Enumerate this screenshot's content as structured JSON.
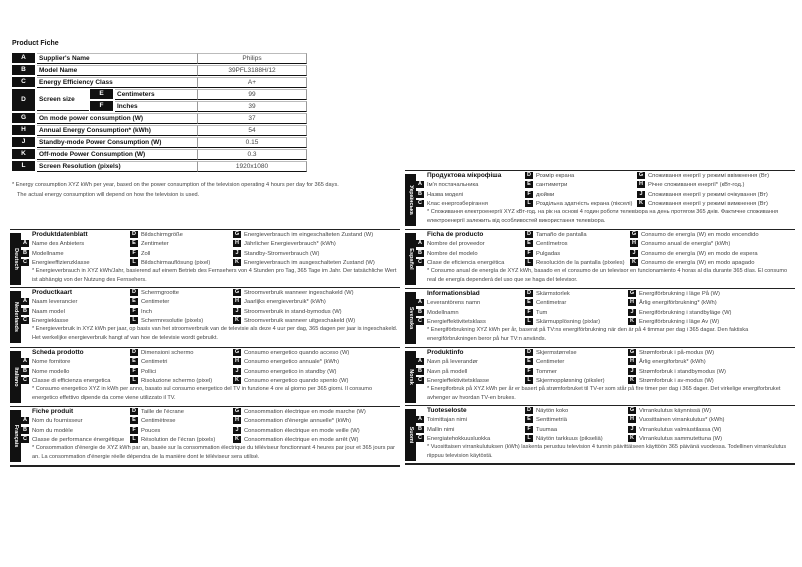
{
  "title": "Product Fiche",
  "table": [
    {
      "letter": "A",
      "label": "Supplier's Name",
      "value": "Philips"
    },
    {
      "letter": "B",
      "label": "Model Name",
      "value": "39PFL3188H/12"
    },
    {
      "letter": "C",
      "label": "Energy Efficiency Class",
      "value": "A+"
    },
    {
      "letter": "D",
      "label": "Screen size",
      "sub": [
        {
          "letter": "E",
          "label": "Centimeters",
          "value": "99"
        },
        {
          "letter": "F",
          "label": "Inches",
          "value": "39"
        }
      ]
    },
    {
      "letter": "G",
      "label": "On mode power consumption (W)",
      "value": "37"
    },
    {
      "letter": "H",
      "label": "Annual Energy Consumption* (kWh)",
      "value": "54"
    },
    {
      "letter": "J",
      "label": "Standby-mode Power Consumption (W)",
      "value": "0.15"
    },
    {
      "letter": "K",
      "label": "Off-mode Power Consumption (W)",
      "value": "0.3"
    },
    {
      "letter": "L",
      "label": "Screen Resolution (pixels)",
      "value": "1920x1080"
    }
  ],
  "note": "* Energy consumption XYZ kWh per year, based on the power consumption of the television operating 4 hours per day for 365 days.",
  "note2": "The actual energy consumption will depend on how the television is used.",
  "languages": [
    {
      "lang": "Deutsch",
      "title": "Produktdatenblatt",
      "A": "Name des Anbieters",
      "B": "Modellname",
      "C": "Energieeffizienzklasse",
      "D": "Bildschirmgröße",
      "E": "Zentimeter",
      "F": "Zoll",
      "L": "Bildschirmauflösung (pixel)",
      "G": "Energieverbrauch im eingeschalteten Zustand (W)",
      "H": "Jährlicher Energieverbrauch* (kWh)",
      "J": "Standby-Stromverbrauch (W)",
      "K": "Energieverbrauch im ausgeschalteten Zustand (W)",
      "note": "* Energieverbrauch in XYZ kWh/Jahr, basierend auf einem Betrieb des Fernsehers von 4 Stunden pro Tag, 365 Tage im Jahr. Der tatsächliche Wert ist abhängig von der Nutzung des Fernsehers."
    },
    {
      "lang": "Nederlands",
      "title": "Productkaart",
      "A": "Naam leverancier",
      "B": "Naam model",
      "C": "Energieklasse",
      "D": "Schermgrootte",
      "E": "Centimeter",
      "F": "Inch",
      "L": "Schermresolutie (pixels)",
      "G": "Stroomverbruik wanneer ingeschakeld (W)",
      "H": "Jaarlijks energieverbruik* (kWh)",
      "J": "Stroomverbruik in stand-bymodus (W)",
      "K": "Stroomverbruik wanneer uitgeschakeld (W)",
      "note": "* Energieverbruik in XYZ kWh per jaar, op basis van het stroomverbruik van de televisie als deze 4 uur per dag, 365 dagen per jaar is ingeschakeld. Het werkelijke energieverbruik hangt af van hoe de televisie wordt gebruikt."
    },
    {
      "lang": "Italiano",
      "title": "Scheda prodotto",
      "A": "Nome fornitore",
      "B": "Nome modello",
      "C": "Classe di efficienza energetica",
      "D": "Dimensioni schermo",
      "E": "Centimetri",
      "F": "Pollici",
      "L": "Risoluzione schermo (pixel)",
      "G": "Consumo energetico quando acceso (W)",
      "H": "Consumo energetico annuale* (kWh)",
      "J": "Consumo energetico in standby (W)",
      "K": "Consumo energetico quando spento (W)",
      "note": "* Consumo energetico XYZ in kWh per anno, basato sul consumo energetico del TV in funzione 4 ore al giorno per 365 giorni. Il consumo energetico effettivo dipende da come viene utilizzato il TV."
    },
    {
      "lang": "Français",
      "title": "Fiche produit",
      "A": "Nom du fournisseur",
      "B": "Nom du modèle",
      "C": "Classe de performance énergétique",
      "D": "Taille de l'écrane",
      "E": "Centimètrese",
      "F": "Pouces",
      "L": "Résolution de l'écran (pixels)",
      "G": "Consommation électrique en mode marche (W)",
      "H": "Consommation d'énergie annuelle* (kWh)",
      "J": "Consommation électrique en mode veille (W)",
      "K": "Consommation électrique en mode arrêt (W)",
      "note": "* Consommation d'énergie de XYZ kWh par an, basée sur la consommation électrique du téléviseur fonctionnant 4 heures par jour et 365 jours par an. La consommation d'énergie réelle dépendra de la manière dont le téléviseur sera utilisé."
    },
    {
      "lang": "Українська",
      "title": "Продуктова мікрофіша",
      "A": "Ім'я постачальника",
      "B": "Назва моделі",
      "C": "Клас енергозберігання",
      "D": "Розмір екрана",
      "E": "сантиметри",
      "F": "дюйми",
      "L": "Роздільна здатність екрана (пікселі)",
      "G": "Споживання енергії у режимі ввімкнення (Вт)",
      "H": "Річне споживання енергії* (кВт-год.)",
      "J": "Споживання енергії у режимі очікування (Вт)",
      "K": "Споживання енергії у режимі вимкнення (Вт)",
      "note": "* Споживання електроенергії XYZ кВт-год. на рік на основі 4 годин роботи телевізора на день протягом 365 днів. Фактичне споживання електроенергії залежить від особливостей використання телевізора."
    },
    {
      "lang": "Español",
      "title": "Ficha de producto",
      "A": "Nombre del proveedor",
      "B": "Nombre del modelo",
      "C": "Clase de eficiencia energética",
      "D": "Tamaño de pantalla",
      "E": "Centímetros",
      "F": "Pulgadas",
      "L": "Resolución de la pantalla (píxeles)",
      "G": "Consumo de energía (W) en modo encendido",
      "H": "Consumo anual de energía* (kWh)",
      "J": "Consumo de energía (W) en modo de espera",
      "K": "Consumo de energía (W) en modo apagado",
      "note": "* Consumo anual de energía de XYZ kWh, basado en el consumo de un televisor en funcionamiento 4 horas al día durante 365 días. El consumo real de energía dependerá del uso que se haga del televisor."
    },
    {
      "lang": "Svenska",
      "title": "Informationsblad",
      "A": "Leverantörens namn",
      "B": "Modellnamn",
      "C": "Energieffektivitetsklass",
      "D": "Skärmstorlek",
      "E": "Centimetrar",
      "F": "Tum",
      "L": "Skärmupplösning (pixlar)",
      "G": "Energiförbrukning i läge På (W)",
      "H": "Årlig energiförbrukning* (kWh)",
      "J": "Energiförbrukning i standbyläge (W)",
      "K": "Energiförbrukning i läge Av (W)",
      "note": "* Energiförbrukning XYZ kWh per år, baserat på TV:ns energiförbrukning när den är på 4 timmar per dag i 365 dagar. Den faktiska energiförbrukningen beror på hur TV:n används."
    },
    {
      "lang": "Norsk",
      "title": "Produktinfo",
      "A": "Navn på leverandør",
      "B": "Navn på modell",
      "C": "Energieffektivitetsklasse",
      "D": "Skjermstørrelse",
      "E": "Centimeter",
      "F": "Tommer",
      "L": "Skjermoppløsning (piksler)",
      "G": "Strømforbruk i på-modus (W)",
      "H": "Årlig energiforbruk* (kWh)",
      "J": "Strømforbruk i standbymodus (W)",
      "K": "Strømforbruk i av-modus (W)",
      "note": "* Energiforbruk på XYZ kWh per år er basert på strømforbruket til TV-er som står på fire timer per dag i 365 dager. Det virkelige energiforbruket avhenger av hvordan TV-en brukes."
    },
    {
      "lang": "Suomi",
      "title": "Tuoteseloste",
      "A": "Toimittajan nimi",
      "B": "Mallin nimi",
      "C": "Energiatehokkuusluokka",
      "D": "Näytön koko",
      "E": "Senttimetriä",
      "F": "Tuumaa",
      "L": "Näytön tarkkuus (pikseliä)",
      "G": "Virrankulutus käynnissä (W)",
      "H": "Vuosittainen virrankulutus* (kWh)",
      "J": "Virrankulutus valmiustilassa (W)",
      "K": "Virrankulutus sammutettuna (W)",
      "note": "* Vuosittaisen virrankulutuksen (kWh) laskenta perustuu television 4 tunnin päivittäiseen käyttöön 365 päivänä vuodessa. Todellinen virrankulutus riippuu television käytöstä."
    }
  ]
}
